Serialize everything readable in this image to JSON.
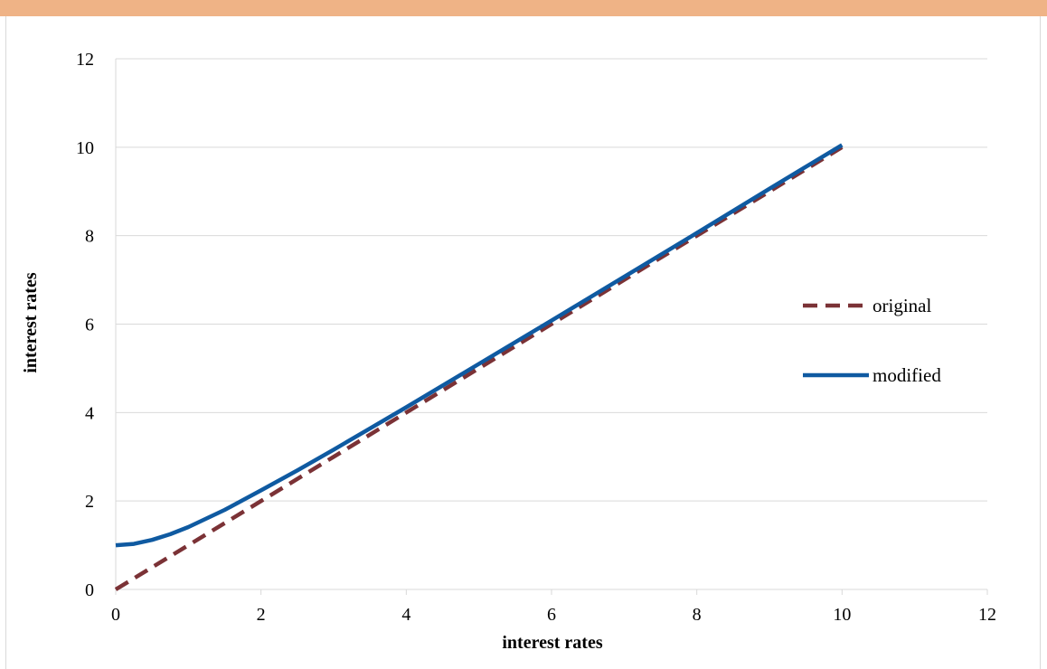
{
  "chart_data": {
    "type": "line",
    "title": "",
    "xlabel": "interest rates",
    "ylabel": "interest rates",
    "xlim": [
      0,
      12
    ],
    "ylim": [
      0,
      12
    ],
    "x_ticks": [
      0,
      2,
      4,
      6,
      8,
      10,
      12
    ],
    "y_ticks": [
      0,
      2,
      4,
      6,
      8,
      10,
      12
    ],
    "x_tick_labels": [
      "0",
      "2",
      "4",
      "6",
      "8",
      "10",
      "12"
    ],
    "y_tick_labels": [
      "0",
      "2",
      "4",
      "6",
      "8",
      "10",
      "12"
    ],
    "grid": "horizontal",
    "legend_position": "right",
    "series": [
      {
        "name": "original",
        "style": "dashed",
        "color": "#7b3236",
        "x": [
          0,
          1,
          2,
          3,
          4,
          5,
          6,
          7,
          8,
          9,
          10
        ],
        "y": [
          0,
          1,
          2,
          3,
          4,
          5,
          6,
          7,
          8,
          9,
          10
        ]
      },
      {
        "name": "modified",
        "style": "solid",
        "color": "#0f5aa1",
        "x": [
          0,
          0.25,
          0.5,
          0.75,
          1,
          1.5,
          2,
          2.5,
          3,
          3.5,
          4,
          5,
          6,
          7,
          8,
          9,
          10
        ],
        "y": [
          1,
          1.03,
          1.12,
          1.25,
          1.41,
          1.8,
          2.24,
          2.69,
          3.16,
          3.64,
          4.12,
          5.1,
          6.08,
          7.07,
          8.06,
          9.06,
          10.05
        ]
      }
    ]
  },
  "colors": {
    "top_bar": "#efb386",
    "gridline": "#d9d9d9",
    "axis": "#d9d9d9"
  }
}
